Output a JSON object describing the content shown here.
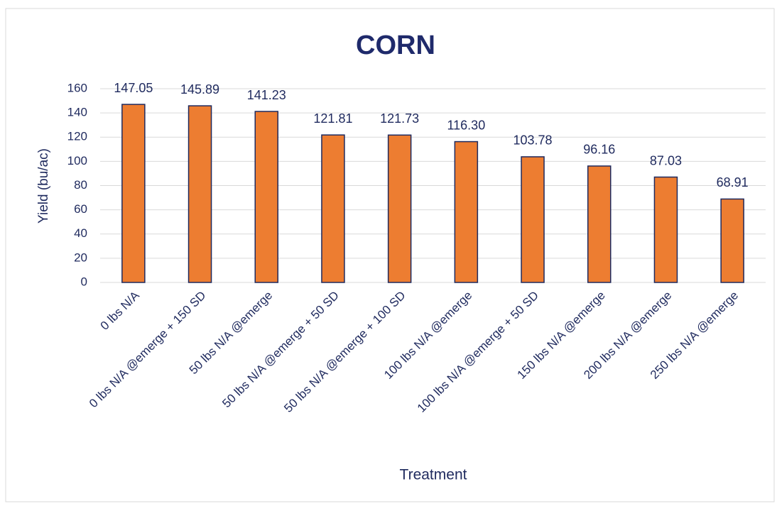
{
  "chart_data": {
    "type": "bar",
    "title": "CORN",
    "x_label": "Treatment",
    "y_label": "Yield (bu/ac)",
    "categories": [
      "0 lbs N/A",
      "0 lbs N/A @emerge + 150 SD",
      "50 lbs N/A @emerge",
      "50 lbs N/A @emerge + 50 SD",
      "50 lbs N/A @emerge + 100 SD",
      "100 lbs N/A @emerge",
      "100 lbs N/A @emerge + 50 SD",
      "150 lbs N/A @emerge",
      "200 lbs N/A @emerge",
      "250 lbs N/A @emerge"
    ],
    "values": [
      147.05,
      145.89,
      141.23,
      121.81,
      121.73,
      116.3,
      103.78,
      96.16,
      87.03,
      68.91
    ],
    "value_labels": [
      "147.05",
      "145.89",
      "141.23",
      "121.81",
      "121.73",
      "116.30",
      "103.78",
      "96.16",
      "87.03",
      "68.91"
    ],
    "color": "#ed7d31",
    "ylim": [
      0,
      160
    ],
    "yticks": [
      0,
      20,
      40,
      60,
      80,
      100,
      120,
      140,
      160
    ],
    "grid": true
  }
}
